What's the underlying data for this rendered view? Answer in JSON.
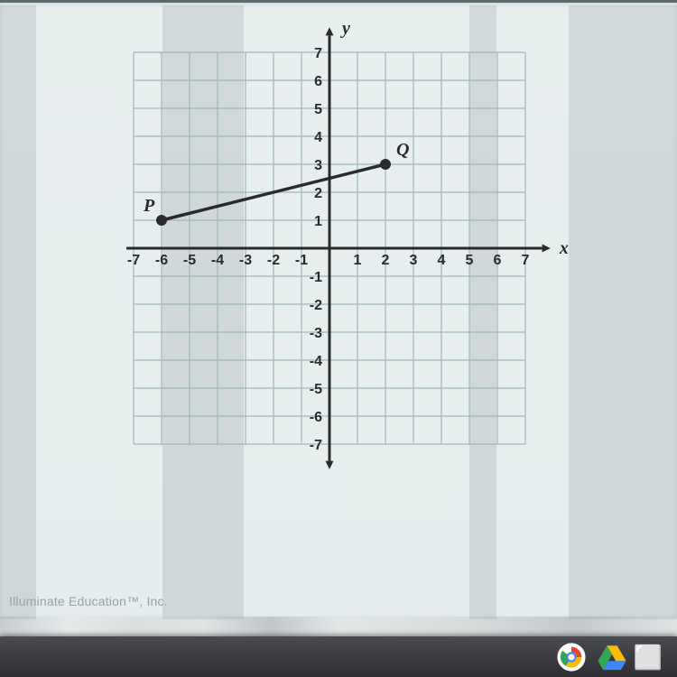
{
  "chart": {
    "type": "scatter_line_on_grid",
    "background_color": "#e5edee",
    "grid_color": "#9cb7c4",
    "grid_minor_color": "#b8ced8",
    "axis_color": "#2a2a2a",
    "axis_width": 3,
    "arrow_size": 9,
    "xlim": [
      -7.5,
      7.5
    ],
    "ylim": [
      -7.5,
      7.5
    ],
    "xtick_step": 1,
    "ytick_step": 1,
    "tick_label_fontsize": 16,
    "tick_label_color": "#2a2a2a",
    "axis_labels": {
      "x": "x",
      "y": "y"
    },
    "axis_label_fontsize": 20,
    "axis_label_style": "italic",
    "point_radius": 6,
    "point_color": "#2a2a2a",
    "line_width": 3.5,
    "line_color": "#2a2a2a",
    "points": {
      "P": {
        "x": -6,
        "y": 1,
        "label_offset": {
          "dx": -20,
          "dy": -10
        }
      },
      "Q": {
        "x": 2,
        "y": 3,
        "label_offset": {
          "dx": 12,
          "dy": -10
        }
      }
    },
    "x_tick_labels_pos": [
      "-7",
      "-6",
      "-5",
      "-4",
      "-3",
      "-2",
      "-1",
      "1",
      "2",
      "3",
      "4",
      "5",
      "6",
      "7"
    ],
    "y_tick_labels_pos": [
      "-7",
      "-6",
      "-5",
      "-4",
      "-3",
      "-2",
      "-1",
      "1",
      "2",
      "3",
      "4",
      "5",
      "6",
      "7"
    ]
  },
  "footer": "Illuminate Education™, Inc.",
  "taskbar": {
    "chrome_colors": [
      "#e94335",
      "#33a852",
      "#fabb05",
      "#4285f4",
      "#ffffff"
    ],
    "drive_colors": [
      "#33a852",
      "#fabb05",
      "#4285f4"
    ]
  }
}
